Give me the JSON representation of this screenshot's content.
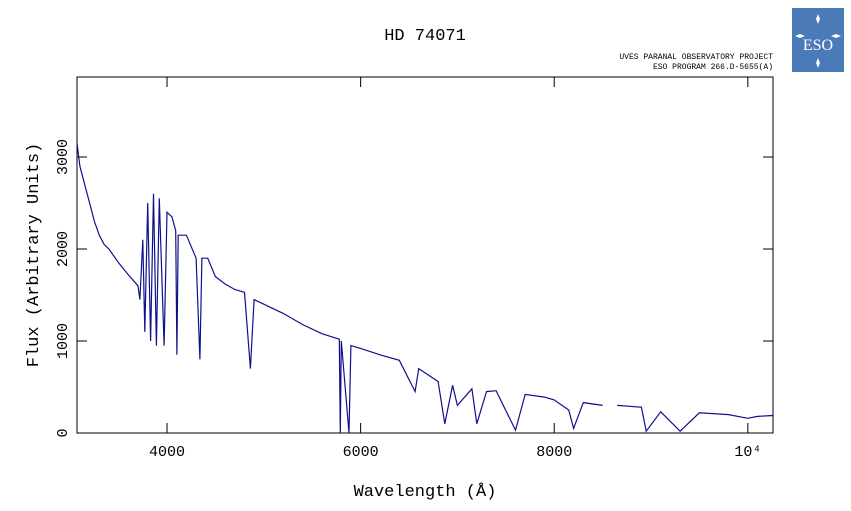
{
  "chart_data": {
    "type": "line",
    "title": "HD 74071",
    "subtitle": [
      "UVES PARANAL OBSERVATORY PROJECT",
      "ESO PROGRAM 266.D-5655(A)"
    ],
    "logo_text": "ESO",
    "x_label": "Wavelength (Å)",
    "y_label": "Flux (Arbitrary Units)",
    "xlim": [
      3070,
      10260
    ],
    "ylim": [
      0,
      3870
    ],
    "xticks": [
      4000,
      6000,
      8000,
      {
        "value": 10000,
        "label": "10⁴"
      }
    ],
    "yticks": [
      0,
      1000,
      2000,
      3000
    ],
    "x": [
      3070,
      3100,
      3150,
      3200,
      3250,
      3300,
      3350,
      3400,
      3500,
      3600,
      3700,
      3720,
      3750,
      3770,
      3800,
      3830,
      3860,
      3890,
      3920,
      3970,
      4000,
      4050,
      4090,
      4102,
      4115,
      4200,
      4300,
      4340,
      4360,
      4420,
      4500,
      4600,
      4700,
      4800,
      4861,
      4900,
      5000,
      5200,
      5400,
      5600,
      5780,
      5790,
      5800,
      5880,
      5900,
      6000,
      6200,
      6400,
      6563,
      6600,
      6800,
      6870,
      6950,
      7000,
      7150,
      7200,
      7300,
      7400,
      7600,
      7700,
      7900,
      8000,
      8150,
      8200,
      8300,
      8500,
      8580,
      8650,
      8900,
      8950,
      9100,
      9300,
      9500,
      9800,
      10000,
      10100,
      10260
    ],
    "series": [
      {
        "name": "HD 74071",
        "color": "#10108c",
        "values": [
          3150,
          2900,
          2700,
          2500,
          2300,
          2150,
          2050,
          2000,
          1850,
          1720,
          1600,
          1450,
          2100,
          1100,
          2500,
          1000,
          2600,
          950,
          2550,
          950,
          2400,
          2350,
          2200,
          850,
          2150,
          2150,
          1900,
          800,
          1900,
          1900,
          1700,
          1620,
          1560,
          1530,
          700,
          1450,
          1400,
          1300,
          1180,
          1080,
          1020,
          0,
          1000,
          0,
          950,
          920,
          850,
          790,
          450,
          700,
          560,
          100,
          520,
          300,
          480,
          100,
          450,
          460,
          30,
          420,
          390,
          360,
          250,
          50,
          330,
          300,
          null,
          300,
          280,
          20,
          230,
          20,
          220,
          200,
          160,
          180,
          190
        ]
      }
    ]
  }
}
